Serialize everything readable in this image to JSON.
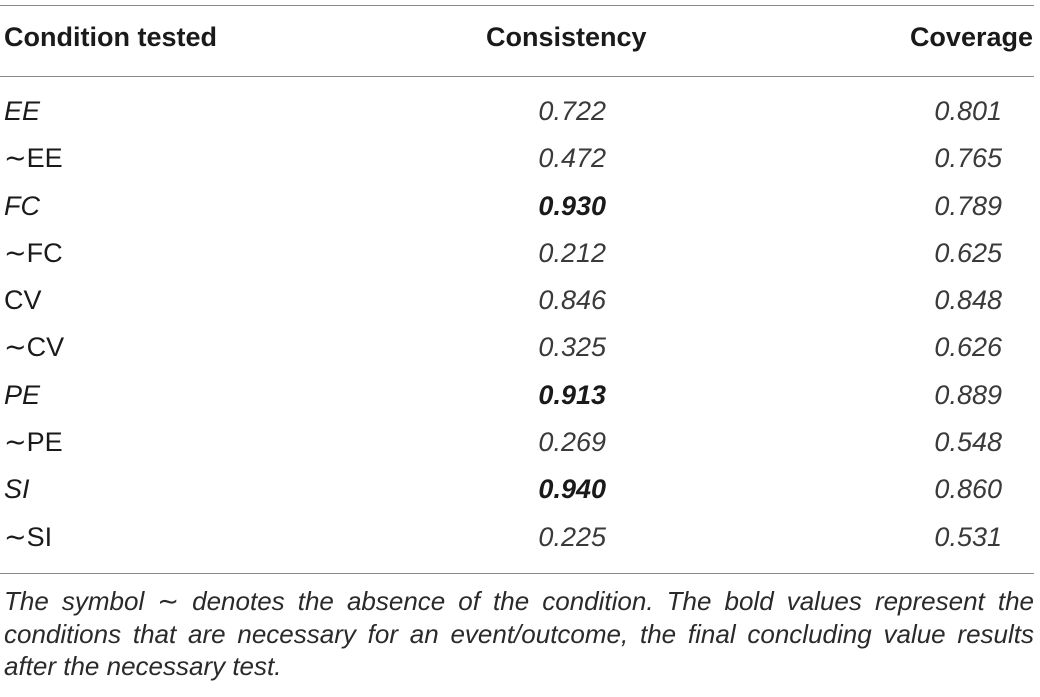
{
  "table": {
    "headers": {
      "condition": "Condition tested",
      "consistency": "Consistency",
      "coverage": "Coverage"
    },
    "rows": [
      {
        "condition": "EE",
        "condition_italic": true,
        "consistency": "0.722",
        "consistency_bold": false,
        "coverage": "0.801"
      },
      {
        "condition": "∼EE",
        "condition_italic": false,
        "consistency": "0.472",
        "consistency_bold": false,
        "coverage": "0.765"
      },
      {
        "condition": "FC",
        "condition_italic": true,
        "consistency": "0.930",
        "consistency_bold": true,
        "coverage": "0.789"
      },
      {
        "condition": "∼FC",
        "condition_italic": false,
        "consistency": "0.212",
        "consistency_bold": false,
        "coverage": "0.625"
      },
      {
        "condition": "CV",
        "condition_italic": false,
        "consistency": "0.846",
        "consistency_bold": false,
        "coverage": "0.848"
      },
      {
        "condition": "∼CV",
        "condition_italic": false,
        "consistency": "0.325",
        "consistency_bold": false,
        "coverage": "0.626"
      },
      {
        "condition": "PE",
        "condition_italic": true,
        "consistency": "0.913",
        "consistency_bold": true,
        "coverage": "0.889"
      },
      {
        "condition": "∼PE",
        "condition_italic": false,
        "consistency": "0.269",
        "consistency_bold": false,
        "coverage": "0.548"
      },
      {
        "condition": "SI",
        "condition_italic": true,
        "consistency": "0.940",
        "consistency_bold": true,
        "coverage": "0.860"
      },
      {
        "condition": "∼SI",
        "condition_italic": false,
        "consistency": "0.225",
        "consistency_bold": false,
        "coverage": "0.531"
      }
    ],
    "footnote": "The symbol ∼ denotes the absence of the condition. The bold values represent the conditions that are necessary for an event/outcome, the final concluding value results after the necessary test."
  }
}
